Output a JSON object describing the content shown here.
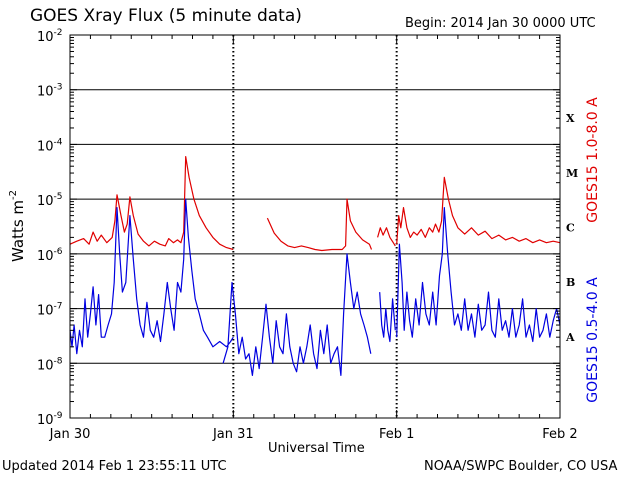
{
  "chart_data": {
    "type": "line",
    "title": "GOES Xray Flux (5 minute data)",
    "begin_label": "Begin:  2014 Jan 30 0000 UTC",
    "ylabel": "Watts m",
    "ylabel_superscript": "-2",
    "xlabel": "Universal Time",
    "y_scale": "log",
    "ylim": [
      1e-09,
      0.01
    ],
    "y_tick_mantissa": "10",
    "y_tick_exponents": [
      "-9",
      "-8",
      "-7",
      "-6",
      "-5",
      "-4",
      "-3",
      "-2"
    ],
    "x_range_hours": [
      0,
      72
    ],
    "x_ticks": [
      {
        "label": "Jan 30",
        "hour": 0
      },
      {
        "label": "Jan 31",
        "hour": 24
      },
      {
        "label": "Feb 1",
        "hour": 48
      },
      {
        "label": "Feb 2",
        "hour": 72
      }
    ],
    "flare_classes": [
      {
        "label": "A",
        "level": 1e-08
      },
      {
        "label": "B",
        "level": 1e-07
      },
      {
        "label": "C",
        "level": 1e-06
      },
      {
        "label": "M",
        "level": 1e-05
      },
      {
        "label": "X",
        "level": 0.0001
      }
    ],
    "series": [
      {
        "name": "GOES15 1.0-8.0 A",
        "color": "#e00000",
        "points": [
          [
            0,
            1.5e-06
          ],
          [
            1,
            1.7e-06
          ],
          [
            2,
            1.9e-06
          ],
          [
            2.8,
            1.5e-06
          ],
          [
            3.4,
            2.5e-06
          ],
          [
            4,
            1.7e-06
          ],
          [
            4.6,
            2.2e-06
          ],
          [
            5.4,
            1.6e-06
          ],
          [
            6.2,
            2e-06
          ],
          [
            6.6,
            4e-06
          ],
          [
            6.9,
            1.2e-05
          ],
          [
            7.5,
            5e-06
          ],
          [
            8,
            2.5e-06
          ],
          [
            8.4,
            3.5e-06
          ],
          [
            8.8,
            1.1e-05
          ],
          [
            9.3,
            5e-06
          ],
          [
            10,
            2.3e-06
          ],
          [
            10.8,
            1.7e-06
          ],
          [
            11.6,
            1.4e-06
          ],
          [
            12.4,
            1.7e-06
          ],
          [
            13.2,
            1.5e-06
          ],
          [
            14,
            1.4e-06
          ],
          [
            14.5,
            1.9e-06
          ],
          [
            15.2,
            1.6e-06
          ],
          [
            15.8,
            1.8e-06
          ],
          [
            16.3,
            1.6e-06
          ],
          [
            16.7,
            2.5e-06
          ],
          [
            17,
            6e-05
          ],
          [
            17.5,
            2.5e-05
          ],
          [
            18.2,
            1e-05
          ],
          [
            19,
            5e-06
          ],
          [
            20,
            3e-06
          ],
          [
            21,
            2e-06
          ],
          [
            22,
            1.5e-06
          ],
          [
            23,
            1.3e-06
          ],
          [
            24,
            1.2e-06
          ],
          null,
          [
            29,
            4.5e-06
          ],
          [
            30,
            2.4e-06
          ],
          [
            31,
            1.7e-06
          ],
          [
            32,
            1.4e-06
          ],
          [
            33,
            1.3e-06
          ],
          [
            34,
            1.4e-06
          ],
          [
            35,
            1.3e-06
          ],
          [
            36,
            1.2e-06
          ],
          [
            37,
            1.15e-06
          ],
          [
            38.5,
            1.2e-06
          ],
          [
            40,
            1.2e-06
          ],
          [
            40.5,
            1.4e-06
          ],
          [
            40.7,
            1e-05
          ],
          [
            41.2,
            4e-06
          ],
          [
            42,
            2.5e-06
          ],
          [
            43,
            1.8e-06
          ],
          [
            44,
            1.5e-06
          ],
          [
            44.3,
            1.2e-06
          ],
          null,
          [
            45.2,
            2e-06
          ],
          [
            45.6,
            3e-06
          ],
          [
            46,
            2.2e-06
          ],
          [
            46.5,
            3e-06
          ],
          [
            47,
            2e-06
          ],
          [
            47.5,
            1.6e-06
          ],
          [
            47.8,
            1.4e-06
          ],
          null,
          [
            48,
            1.5e-06
          ],
          [
            48.3,
            5e-06
          ],
          [
            48.6,
            3e-06
          ],
          [
            49,
            7e-06
          ],
          [
            49.5,
            3e-06
          ],
          [
            50,
            2e-06
          ],
          [
            50.5,
            2.5e-06
          ],
          [
            51,
            2.2e-06
          ],
          [
            51.6,
            2.8e-06
          ],
          [
            52.2,
            2e-06
          ],
          [
            52.8,
            3e-06
          ],
          [
            53.3,
            2.5e-06
          ],
          [
            53.7,
            3.5e-06
          ],
          [
            54.2,
            2.5e-06
          ],
          [
            54.6,
            4e-06
          ],
          [
            55,
            2.5e-05
          ],
          [
            55.6,
            1e-05
          ],
          [
            56.2,
            5e-06
          ],
          [
            57,
            3e-06
          ],
          [
            58,
            2.3e-06
          ],
          [
            59,
            3e-06
          ],
          [
            60,
            2.2e-06
          ],
          [
            61,
            2.6e-06
          ],
          [
            62,
            1.9e-06
          ],
          [
            63,
            2.2e-06
          ],
          [
            64,
            1.8e-06
          ],
          [
            65,
            2e-06
          ],
          [
            66,
            1.7e-06
          ],
          [
            67,
            1.9e-06
          ],
          [
            68,
            1.6e-06
          ],
          [
            69,
            1.8e-06
          ],
          [
            70,
            1.6e-06
          ],
          [
            71,
            1.7e-06
          ],
          [
            72,
            1.6e-06
          ]
        ]
      },
      {
        "name": "GOES15 0.5-4.0 A",
        "color": "#0000e0",
        "points": [
          [
            0,
            4e-08
          ],
          [
            0.3,
            2e-08
          ],
          [
            0.6,
            5e-08
          ],
          [
            1,
            1.5e-08
          ],
          [
            1.4,
            4e-08
          ],
          [
            1.8,
            2e-08
          ],
          [
            2.2,
            1.5e-07
          ],
          [
            2.6,
            3e-08
          ],
          [
            3,
            8e-08
          ],
          [
            3.4,
            2.5e-07
          ],
          [
            3.8,
            5e-08
          ],
          [
            4.2,
            1.8e-07
          ],
          [
            4.6,
            3e-08
          ],
          [
            5.1,
            3e-08
          ],
          [
            5.6,
            5e-08
          ],
          [
            6.1,
            8e-08
          ],
          [
            6.5,
            3e-07
          ],
          [
            6.9,
            7e-06
          ],
          [
            7.3,
            1e-06
          ],
          [
            7.7,
            2e-07
          ],
          [
            8.2,
            3e-07
          ],
          [
            8.8,
            5e-06
          ],
          [
            9.3,
            8e-07
          ],
          [
            9.8,
            1.5e-07
          ],
          [
            10.3,
            5e-08
          ],
          [
            10.8,
            3e-08
          ],
          [
            11.3,
            1.3e-07
          ],
          [
            11.8,
            4e-08
          ],
          [
            12.3,
            3e-08
          ],
          [
            12.8,
            6e-08
          ],
          [
            13.3,
            2.5e-08
          ],
          [
            13.8,
            8e-08
          ],
          [
            14.3,
            3e-07
          ],
          [
            14.8,
            1e-07
          ],
          [
            15.3,
            4e-08
          ],
          [
            15.8,
            3e-07
          ],
          [
            16.3,
            2e-07
          ],
          [
            16.7,
            8e-07
          ],
          [
            17,
            1e-05
          ],
          [
            17.4,
            2e-06
          ],
          [
            17.9,
            5e-07
          ],
          [
            18.4,
            1.5e-07
          ],
          [
            19,
            8e-08
          ],
          [
            19.6,
            4e-08
          ],
          [
            20.2,
            3e-08
          ],
          [
            21,
            2e-08
          ],
          [
            22,
            2.5e-08
          ],
          [
            23,
            2e-08
          ],
          [
            23.6,
            2.5e-08
          ],
          [
            24,
            3e-08
          ],
          null,
          [
            22.5,
            1e-08
          ],
          [
            23.2,
            2e-08
          ],
          [
            23.8,
            3e-07
          ],
          [
            24.3,
            8e-08
          ],
          [
            24.8,
            1.5e-08
          ],
          [
            25.3,
            3e-08
          ],
          [
            25.8,
            1.2e-08
          ],
          [
            26.3,
            1.5e-08
          ],
          [
            26.8,
            6e-09
          ],
          [
            27.3,
            2e-08
          ],
          [
            27.8,
            8e-09
          ],
          [
            28.3,
            3e-08
          ],
          [
            28.8,
            1.2e-07
          ],
          [
            29.3,
            3e-08
          ],
          [
            29.8,
            1e-08
          ],
          [
            30.3,
            6e-08
          ],
          [
            30.8,
            2e-08
          ],
          [
            31.3,
            1.5e-08
          ],
          [
            31.8,
            8e-08
          ],
          [
            32.3,
            2e-08
          ],
          [
            32.8,
            1e-08
          ],
          [
            33.3,
            7e-09
          ],
          [
            33.8,
            2e-08
          ],
          [
            34.3,
            1e-08
          ],
          [
            34.8,
            2e-08
          ],
          [
            35.3,
            5e-08
          ],
          [
            35.8,
            1.5e-08
          ],
          [
            36.3,
            8e-09
          ],
          [
            36.8,
            4e-08
          ],
          [
            37.3,
            1.5e-08
          ],
          [
            37.8,
            5e-08
          ],
          [
            38.3,
            1e-08
          ],
          [
            38.8,
            1.5e-08
          ],
          [
            39.3,
            2e-08
          ],
          [
            39.8,
            6e-09
          ],
          [
            40.2,
            8e-08
          ],
          [
            40.7,
            1e-06
          ],
          [
            41.2,
            3e-07
          ],
          [
            41.7,
            1e-07
          ],
          [
            42.2,
            2e-07
          ],
          [
            42.7,
            8e-08
          ],
          [
            43.2,
            5e-08
          ],
          [
            43.7,
            3e-08
          ],
          [
            44.2,
            1.5e-08
          ],
          null,
          [
            45.5,
            2e-07
          ],
          [
            45.8,
            5e-08
          ],
          [
            46.1,
            3e-08
          ],
          [
            46.4,
            1e-07
          ],
          [
            46.7,
            4e-08
          ],
          [
            47,
            2.5e-08
          ],
          [
            47.4,
            1.5e-07
          ],
          [
            47.8,
            4e-08
          ],
          null,
          [
            48,
            3e-08
          ],
          [
            48.4,
            1.5e-06
          ],
          [
            48.8,
            3e-07
          ],
          [
            49.1,
            4e-08
          ],
          [
            49.5,
            2e-07
          ],
          [
            49.9,
            6e-08
          ],
          [
            50.3,
            3e-08
          ],
          [
            50.8,
            1.5e-07
          ],
          [
            51.3,
            5e-08
          ],
          [
            51.8,
            3e-07
          ],
          [
            52.3,
            8e-08
          ],
          [
            52.8,
            5e-08
          ],
          [
            53.3,
            2e-07
          ],
          [
            53.8,
            5e-08
          ],
          [
            54.3,
            4e-07
          ],
          [
            54.7,
            1e-06
          ],
          [
            55,
            7e-06
          ],
          [
            55.5,
            1e-06
          ],
          [
            56,
            2e-07
          ],
          [
            56.5,
            5e-08
          ],
          [
            57,
            8e-08
          ],
          [
            57.5,
            4e-08
          ],
          [
            58,
            1.5e-07
          ],
          [
            58.5,
            4e-08
          ],
          [
            59,
            8e-08
          ],
          [
            59.5,
            3e-08
          ],
          [
            60,
            1.2e-07
          ],
          [
            60.5,
            4e-08
          ],
          [
            61,
            5e-08
          ],
          [
            61.5,
            2e-07
          ],
          [
            62,
            4e-08
          ],
          [
            62.5,
            3e-08
          ],
          [
            63,
            1.5e-07
          ],
          [
            63.5,
            4e-08
          ],
          [
            64,
            6e-08
          ],
          [
            64.5,
            3e-08
          ],
          [
            65,
            1e-07
          ],
          [
            65.5,
            3e-08
          ],
          [
            66,
            5e-08
          ],
          [
            66.5,
            1.5e-07
          ],
          [
            67,
            3e-08
          ],
          [
            67.5,
            5e-08
          ],
          [
            68,
            2.5e-08
          ],
          [
            68.5,
            1e-07
          ],
          [
            69,
            3e-08
          ],
          [
            69.5,
            4e-08
          ],
          [
            70,
            8e-08
          ],
          [
            70.5,
            3e-08
          ],
          [
            71,
            6e-08
          ],
          [
            71.5,
            1e-07
          ],
          [
            72,
            5e-08
          ]
        ]
      }
    ]
  },
  "footer": {
    "updated": "Updated 2014 Feb  1 23:55:11 UTC",
    "credit": "NOAA/SWPC Boulder, CO USA"
  }
}
